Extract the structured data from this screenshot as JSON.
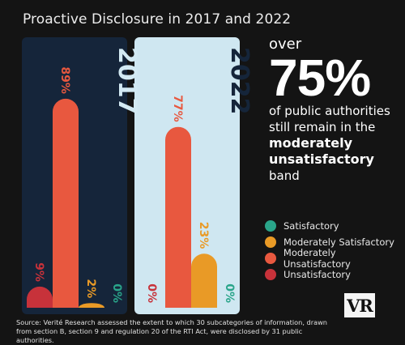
{
  "title": "Proactive Disclosure in 2017 and 2022",
  "chart_data": [
    {
      "type": "bar",
      "panel_label": "2017",
      "categories": [
        "Unsatisfactory",
        "Moderately Unsatisfactory",
        "Moderately Satisfactory",
        "Satisfactory"
      ],
      "values": [
        9,
        89,
        2,
        0
      ],
      "value_labels": [
        "9%",
        "89%",
        "2%",
        "0%"
      ],
      "ylim": [
        0,
        100
      ]
    },
    {
      "type": "bar",
      "panel_label": "2022",
      "categories": [
        "Unsatisfactory",
        "Moderately Unsatisfactory",
        "Moderately Satisfactory",
        "Satisfactory"
      ],
      "values": [
        0,
        77,
        23,
        0
      ],
      "value_labels": [
        "0%",
        "77%",
        "23%",
        "0%"
      ],
      "ylim": [
        0,
        100
      ]
    }
  ],
  "colors": {
    "Unsatisfactory": "#c7323a",
    "Moderately Unsatisfactory": "#e8583f",
    "Moderately Satisfactory": "#e99a26",
    "Satisfactory": "#2aa58a",
    "panel_2017": "#15253a",
    "panel_2022": "#cfe7f1"
  },
  "headline": {
    "over": "over",
    "percent": "75%",
    "line1": "of public authorities",
    "line2": "still remain in the",
    "bold1": "moderately",
    "bold2": "unsatisfactory",
    "line3": "band"
  },
  "legend": [
    {
      "label": "Satisfactory",
      "color": "#2aa58a"
    },
    {
      "label": "Moderately Satisfactory",
      "color": "#e99a26"
    },
    {
      "label": "Moderately Unsatisfactory",
      "color": "#e8583f"
    },
    {
      "label": "Unsatisfactory",
      "color": "#c7323a"
    }
  ],
  "source": "Source: Verité Research assessed the extent to which 30 subcategories of information, drawn from section B, section 9 and regulation 20 of the RTI Act, were disclosed by 31 public authorities.",
  "logo_text": "VR"
}
